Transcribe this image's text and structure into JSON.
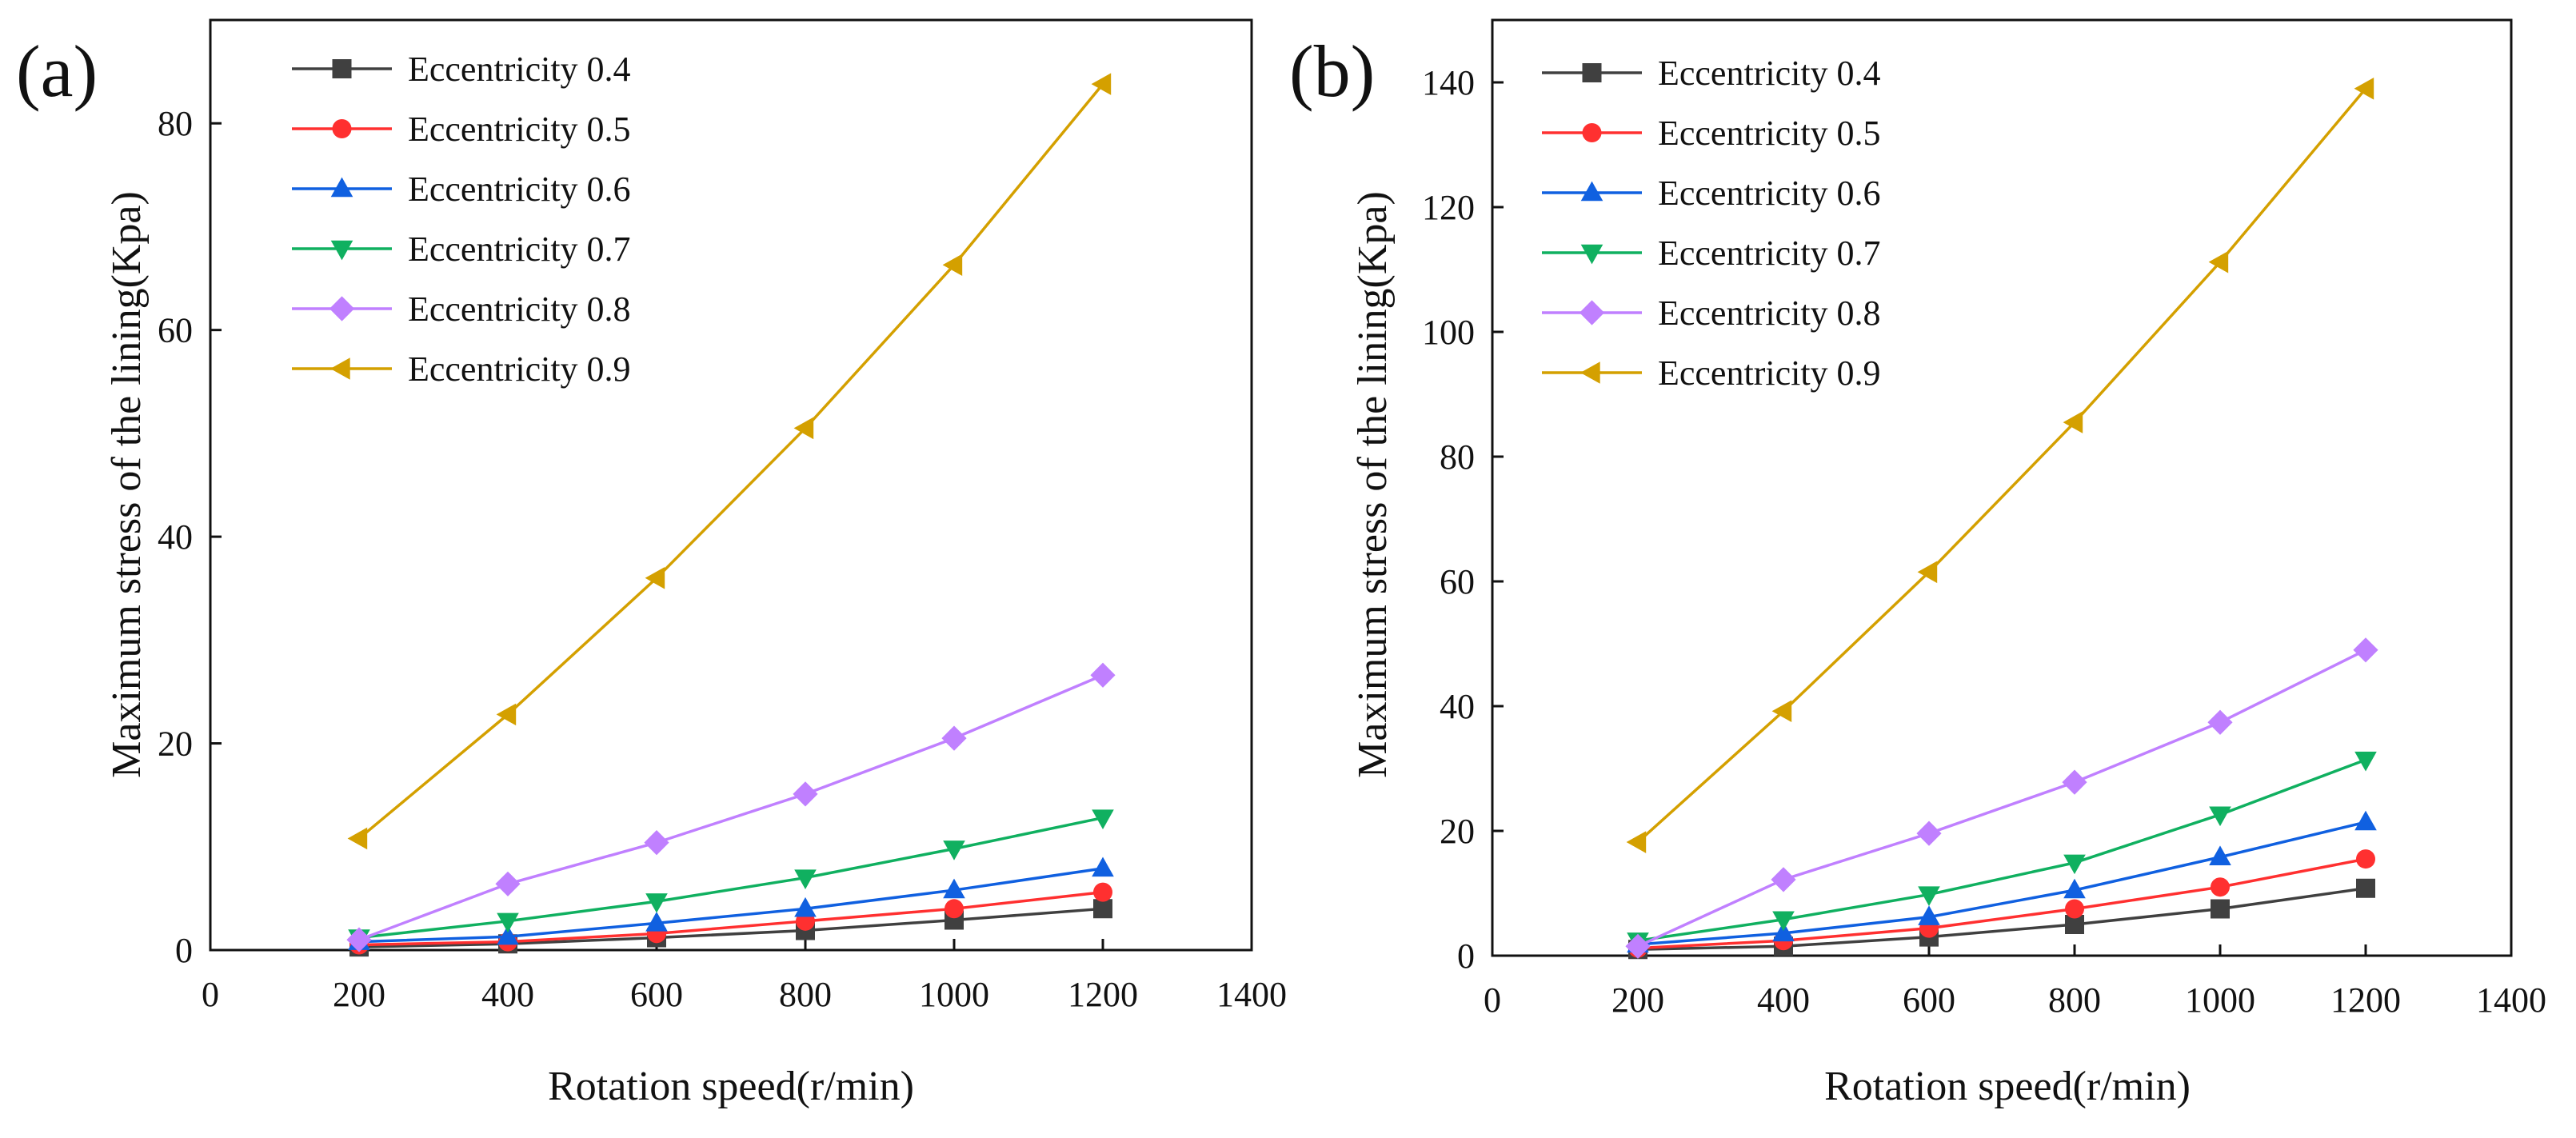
{
  "chart_data": [
    {
      "type": "line",
      "panel_label": "(a)",
      "xlabel": "Rotation speed(r/min)",
      "ylabel": "Maximum stress of the lining(Kpa)",
      "xlim": [
        0,
        1400
      ],
      "ylim": [
        0,
        90
      ],
      "xticks": [
        0,
        200,
        400,
        600,
        800,
        1000,
        1200,
        1400
      ],
      "yticks": [
        0,
        20,
        40,
        60,
        80
      ],
      "x": [
        200,
        400,
        600,
        800,
        1000,
        1200
      ],
      "legend_position": "top-left",
      "series": [
        {
          "name": "Eccentricity 0.4",
          "color": "#404040",
          "marker": "square",
          "values": [
            0.3,
            0.6,
            1.2,
            1.9,
            2.9,
            4.0
          ]
        },
        {
          "name": "Eccentricity 0.5",
          "color": "#ff3030",
          "marker": "circle",
          "values": [
            0.5,
            0.8,
            1.6,
            2.8,
            4.0,
            5.6
          ]
        },
        {
          "name": "Eccentricity 0.6",
          "color": "#1060e0",
          "marker": "triangle-up",
          "values": [
            0.8,
            1.3,
            2.6,
            4.0,
            5.8,
            7.9
          ]
        },
        {
          "name": "Eccentricity 0.7",
          "color": "#10b060",
          "marker": "triangle-down",
          "values": [
            1.2,
            2.8,
            4.7,
            7.0,
            9.8,
            12.8
          ]
        },
        {
          "name": "Eccentricity 0.8",
          "color": "#c080ff",
          "marker": "diamond",
          "values": [
            1.0,
            6.4,
            10.4,
            15.1,
            20.5,
            26.6
          ]
        },
        {
          "name": "Eccentricity 0.9",
          "color": "#d4a000",
          "marker": "triangle-left",
          "values": [
            10.8,
            22.8,
            36.0,
            50.5,
            66.3,
            83.8
          ]
        }
      ]
    },
    {
      "type": "line",
      "panel_label": "(b)",
      "xlabel": "Rotation speed(r/min)",
      "ylabel": "Maximum stress of the lining(Kpa)",
      "xlim": [
        0,
        1400
      ],
      "ylim": [
        0,
        150
      ],
      "xticks": [
        0,
        200,
        400,
        600,
        800,
        1000,
        1200,
        1400
      ],
      "yticks": [
        0,
        20,
        40,
        60,
        80,
        100,
        120,
        140
      ],
      "x": [
        200,
        400,
        600,
        800,
        1000,
        1200
      ],
      "legend_position": "top-left",
      "series": [
        {
          "name": "Eccentricity 0.4",
          "color": "#404040",
          "marker": "square",
          "values": [
            1.0,
            1.5,
            3.0,
            5.0,
            7.5,
            10.8
          ]
        },
        {
          "name": "Eccentricity 0.5",
          "color": "#ff3030",
          "marker": "circle",
          "values": [
            1.2,
            2.4,
            4.4,
            7.5,
            11.0,
            15.5
          ]
        },
        {
          "name": "Eccentricity 0.6",
          "color": "#1060e0",
          "marker": "triangle-up",
          "values": [
            1.8,
            3.6,
            6.2,
            10.5,
            15.8,
            21.4
          ]
        },
        {
          "name": "Eccentricity 0.7",
          "color": "#10b060",
          "marker": "triangle-down",
          "values": [
            2.4,
            5.8,
            9.8,
            14.9,
            22.6,
            31.4
          ]
        },
        {
          "name": "Eccentricity 0.8",
          "color": "#c080ff",
          "marker": "diamond",
          "values": [
            1.5,
            12.2,
            19.6,
            27.8,
            37.4,
            49.0
          ]
        },
        {
          "name": "Eccentricity 0.9",
          "color": "#d4a000",
          "marker": "triangle-left",
          "values": [
            18.2,
            39.2,
            61.5,
            85.5,
            111.2,
            139.0
          ]
        }
      ]
    }
  ]
}
